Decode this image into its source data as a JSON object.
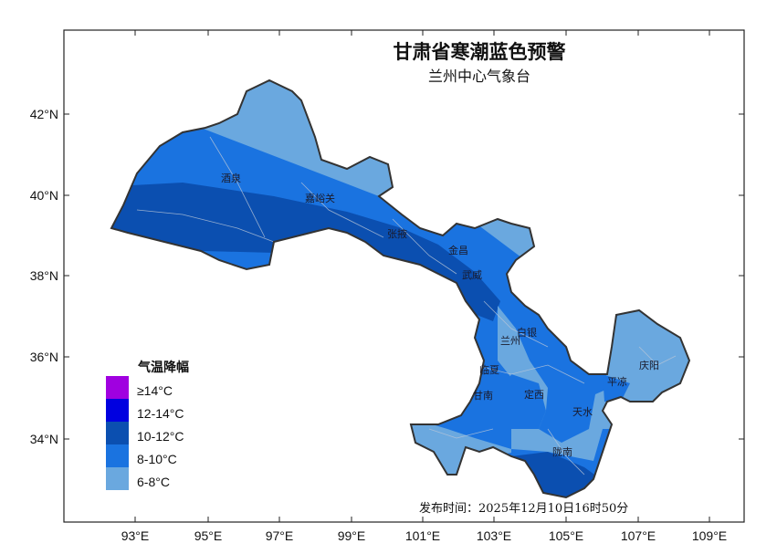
{
  "title": "甘肃省寒潮蓝色预警",
  "subtitle": "兰州中心气象台",
  "footer": "发布时间：2025年12月10日16时50分",
  "x_ticks": [
    "93°E",
    "95°E",
    "97°E",
    "99°E",
    "101°E",
    "103°E",
    "105°E",
    "107°E",
    "109°E"
  ],
  "y_ticks": [
    "42°N",
    "40°N",
    "38°N",
    "36°N",
    "34°N"
  ],
  "legend": {
    "title": "气温降幅",
    "items": [
      {
        "label": "≥14°C",
        "color": "#a000e0"
      },
      {
        "label": "12-14°C",
        "color": "#0000e0"
      },
      {
        "label": "10-12°C",
        "color": "#0b4fb0"
      },
      {
        "label": "8-10°C",
        "color": "#1a73e0"
      },
      {
        "label": "6-8°C",
        "color": "#6aa8df"
      }
    ]
  },
  "cities": [
    "酒泉",
    "嘉峪关",
    "张掖",
    "金昌",
    "武威",
    "白银",
    "兰州",
    "临夏",
    "甘南",
    "定西",
    "天水",
    "平凉",
    "庆阳",
    "陇南"
  ]
}
